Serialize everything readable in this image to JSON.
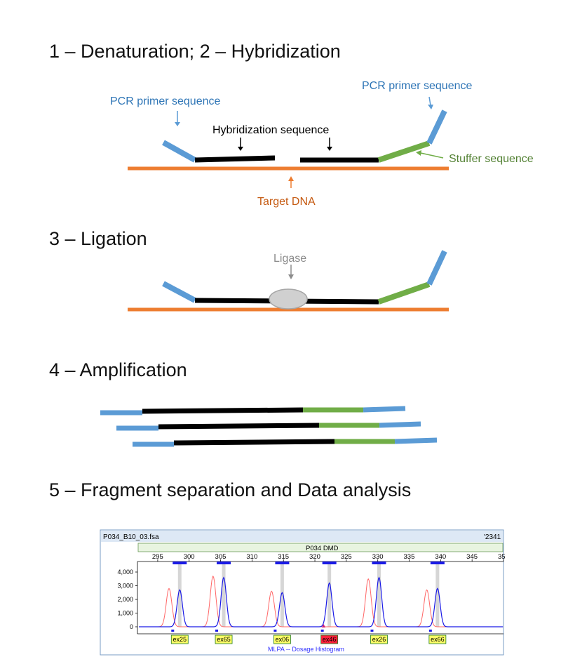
{
  "steps": {
    "s1": "1 – Denaturation; 2 – Hybridization",
    "s3": "3 – Ligation",
    "s4": "4 – Amplification",
    "s5": "5 – Fragment separation and Data analysis"
  },
  "labels": {
    "pcr_primer_left": "PCR primer sequence",
    "pcr_primer_right": "PCR primer sequence",
    "hybridization": "Hybridization sequence",
    "stuffer": "Stuffer sequence",
    "target_dna": "Target DNA",
    "ligase": "Ligase"
  },
  "colors": {
    "primer": "#5b9bd5",
    "stuffer": "#70ad47",
    "hybrid": "#000000",
    "target": "#ed7d31",
    "ligase": "#d0d0d0",
    "primer_label": "#2e75b6",
    "stuffer_label": "#548235",
    "target_label": "#c55a11",
    "ligase_label": "#8c8c8c"
  },
  "software": {
    "filename": "P034_B10_03.fsa",
    "corner_label": "'2341",
    "panel_name": "P034 DMD",
    "bottom_label": "MLPA -- Dosage Histogram",
    "y_ticks": [
      "4,000",
      "3,000",
      "2,000",
      "1,000",
      "0"
    ],
    "x_ticks": [
      "295",
      "300",
      "305",
      "310",
      "315",
      "320",
      "325",
      "330",
      "335",
      "340",
      "345",
      "35"
    ],
    "exons": [
      "ex25",
      "ex65",
      "ex06",
      "ex46",
      "ex26",
      "ex66"
    ]
  },
  "chart_data": {
    "type": "line",
    "xlabel": "",
    "ylabel": "",
    "ylim": [
      0,
      4000
    ],
    "xlim": [
      292,
      350
    ],
    "series": [
      {
        "color": "blue",
        "peaks": [
          {
            "x": 298.5,
            "y": 2700
          },
          {
            "x": 305.5,
            "y": 3600
          },
          {
            "x": 314.8,
            "y": 2500
          },
          {
            "x": 322.3,
            "y": 3200
          },
          {
            "x": 330.2,
            "y": 3600
          },
          {
            "x": 339.5,
            "y": 2800
          }
        ]
      },
      {
        "color": "red",
        "peaks": [
          {
            "x": 296.8,
            "y": 2800
          },
          {
            "x": 303.8,
            "y": 3700
          },
          {
            "x": 313.1,
            "y": 2600
          },
          {
            "x": 328.5,
            "y": 3500
          },
          {
            "x": 337.8,
            "y": 2700
          }
        ]
      }
    ],
    "annotations": [
      "ex25",
      "ex65",
      "ex06",
      "ex46",
      "ex26",
      "ex66"
    ],
    "highlighted": "ex46"
  }
}
